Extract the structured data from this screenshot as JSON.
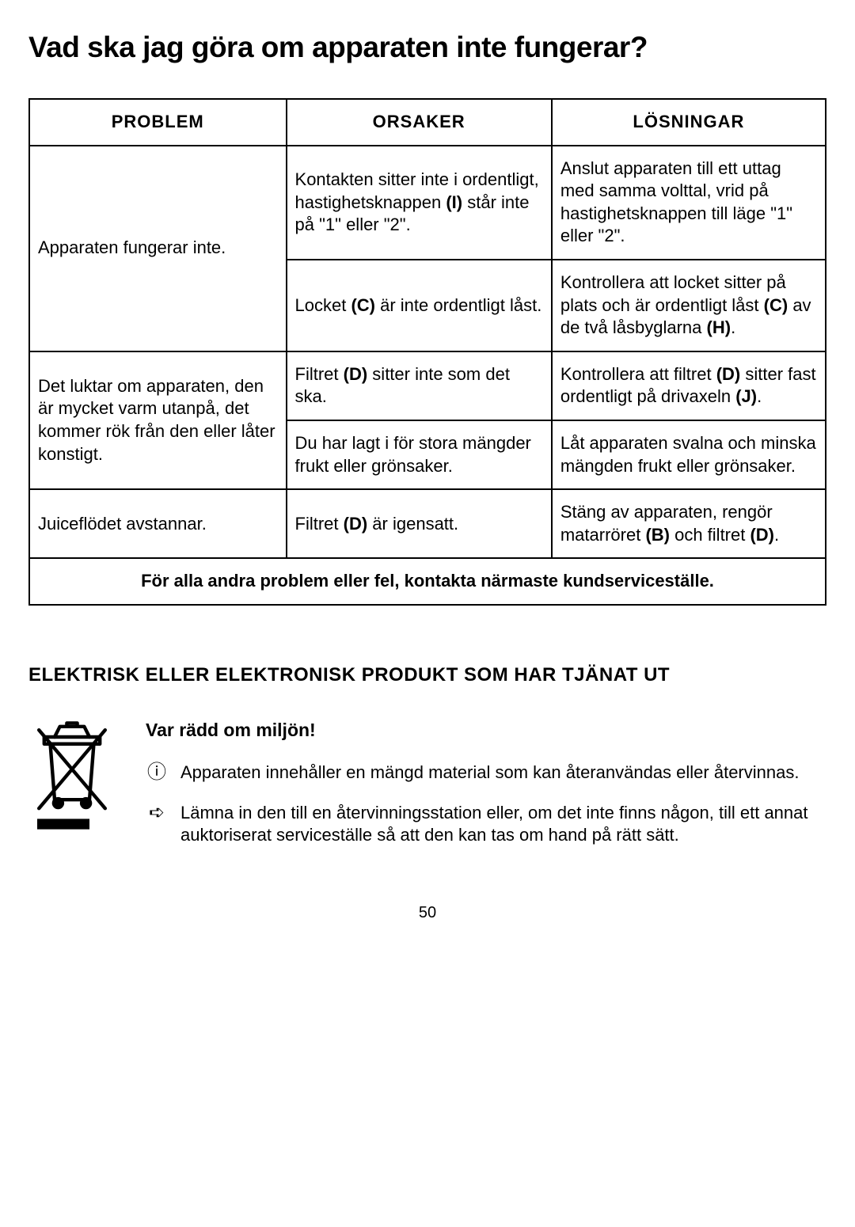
{
  "title": "Vad ska jag göra om apparaten inte fungerar?",
  "table": {
    "headers": [
      "PROBLEM",
      "ORSAKER",
      "LÖSNINGAR"
    ],
    "rows": [
      {
        "problem": "Apparaten fungerar inte.",
        "problem_rowspan": 2,
        "cause_html": "Kontakten sitter inte i ordentligt, hastighetsknappen <span class=\"bref\">(I)</span> står inte på \"1\" eller \"2\".",
        "solution_html": "Anslut apparaten till ett uttag med samma volttal, vrid på hastighetsknappen till läge \"1\" eller \"2\"."
      },
      {
        "cause_html": "Locket <span class=\"bref\">(C)</span> är inte ordentligt låst.",
        "solution_html": "Kontrollera att locket sitter på plats och är ordentligt låst <span class=\"bref\">(C)</span> av de två låsbyglarna <span class=\"bref\">(H)</span>."
      },
      {
        "problem": "Det luktar om apparaten, den är mycket varm utanpå, det kommer rök från den eller låter konstigt.",
        "problem_rowspan": 2,
        "cause_html": "Filtret <span class=\"bref\">(D)</span> sitter inte som det ska.",
        "solution_html": "Kontrollera att filtret <span class=\"bref\">(D)</span> sitter fast ordentligt på drivaxeln <span class=\"bref\">(J)</span>."
      },
      {
        "cause_html": "Du har lagt i för stora mängder frukt eller grönsaker.",
        "solution_html": "Låt apparaten svalna och minska mängden frukt eller grönsaker."
      },
      {
        "problem": "Juiceflödet avstannar.",
        "problem_rowspan": 1,
        "cause_html": "Filtret <span class=\"bref\">(D)</span> är igensatt.",
        "solution_html": "Stäng av apparaten, rengör matarröret <span class=\"bref\">(B)</span> och filtret <span class=\"bref\">(D)</span>."
      }
    ],
    "footnote": "För alla andra problem eller fel, kontakta närmaste kundserviceställe."
  },
  "section_heading": "ELEKTRISK ELLER ELEKTRONISK PRODUKT SOM HAR TJÄNAT UT",
  "env": {
    "title": "Var rädd om miljön!",
    "items": [
      {
        "glyph": "ⓘ",
        "text": "Apparaten innehåller en mängd material som kan återanvändas eller återvinnas."
      },
      {
        "glyph": "➪",
        "text": "Lämna in den till en återvinningsstation eller, om det inte finns någon, till ett annat auktoriserat serviceställe så att den kan tas om hand på rätt sätt."
      }
    ]
  },
  "page_number": "50"
}
